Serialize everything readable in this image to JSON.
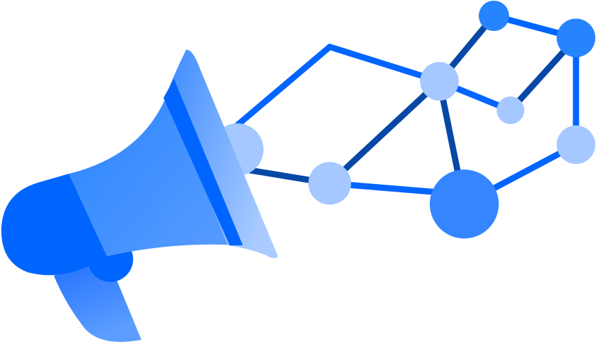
{
  "illustration": {
    "icon": "megaphone-icon",
    "network_icon": "network-graph-icon"
  },
  "colors": {
    "blue_bright": "#0065FF",
    "blue_dark": "#0747A6",
    "blue_mid": "#2684FF",
    "blue_node": "#4C9AFF",
    "blue_light": "#A4C8FF",
    "blue_pale": "#B3D4FF",
    "background": "#FFFFFF"
  }
}
